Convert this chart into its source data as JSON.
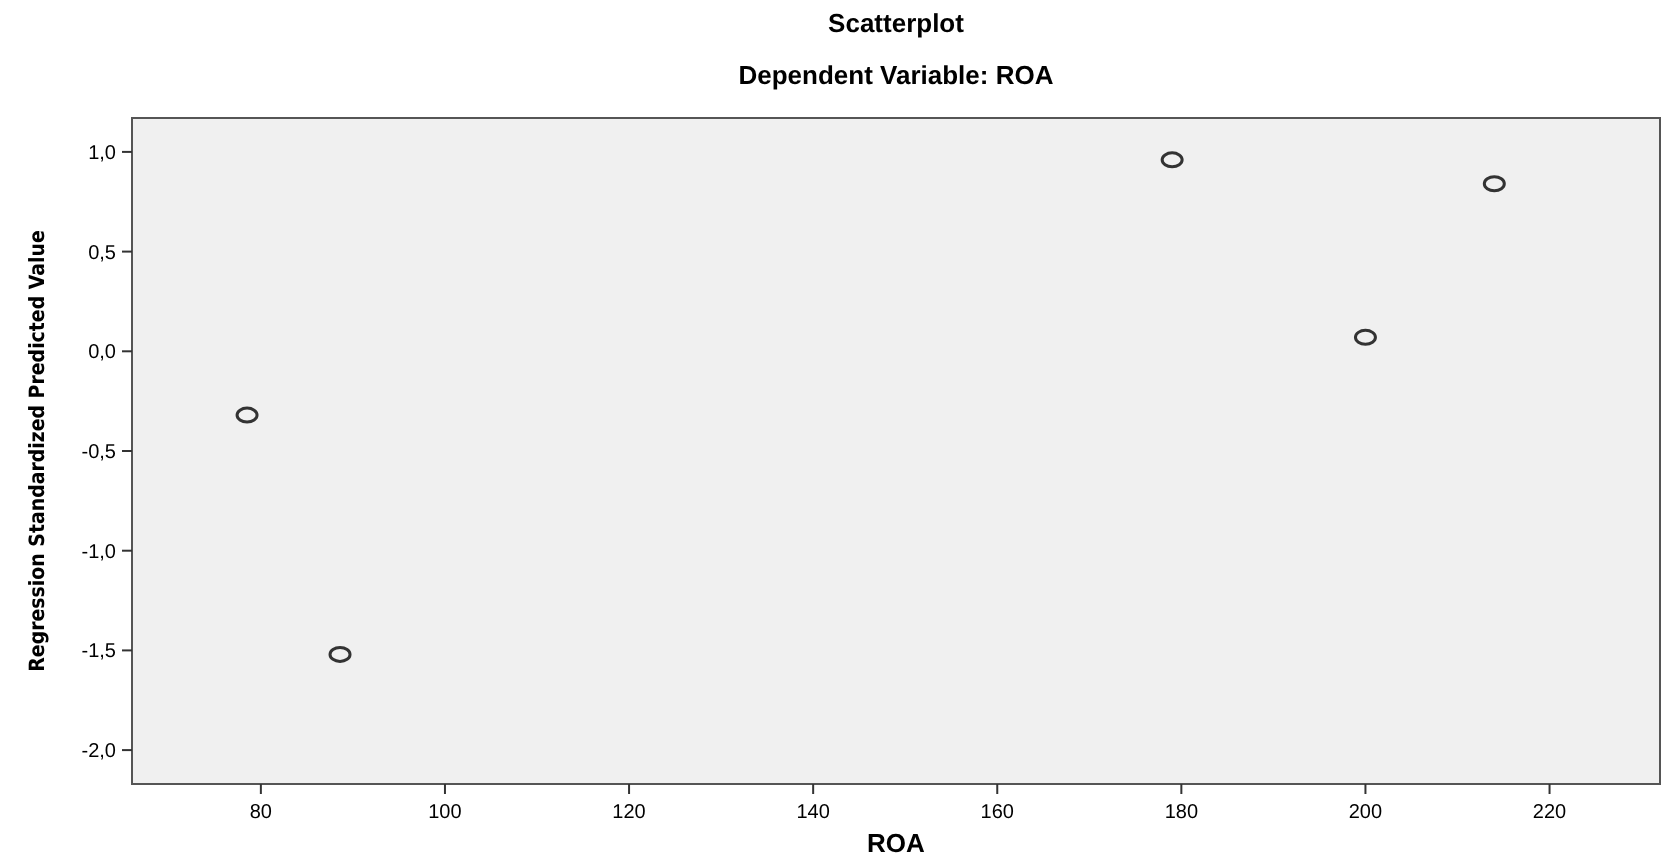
{
  "chart_data": {
    "type": "scatter",
    "title": "Scatterplot",
    "subtitle": "Dependent Variable: ROA",
    "xlabel": "ROA",
    "ylabel": "Regression Standardized Predicted Value",
    "x": [
      78.5,
      88.6,
      179,
      200,
      214
    ],
    "series": [
      {
        "color": "#333333",
        "values": [
          -0.32,
          -1.52,
          0.96,
          0.07,
          0.84
        ]
      }
    ],
    "xlim": [
      66,
      232
    ],
    "xticks": [
      80,
      100,
      120,
      140,
      160,
      180,
      200,
      220
    ],
    "ylim": [
      -2.17,
      1.17
    ],
    "yticks": [
      {
        "value": -2,
        "label": "-2,0"
      },
      {
        "value": -1.5,
        "label": "-1,5"
      },
      {
        "value": -1,
        "label": "-1,0"
      },
      {
        "value": -0.5,
        "label": "-0,5"
      },
      {
        "value": 0,
        "label": "0,0"
      },
      {
        "value": 0.5,
        "label": "0,5"
      },
      {
        "value": 1,
        "label": "1,0"
      }
    ],
    "grid": false,
    "marker": "circle"
  }
}
